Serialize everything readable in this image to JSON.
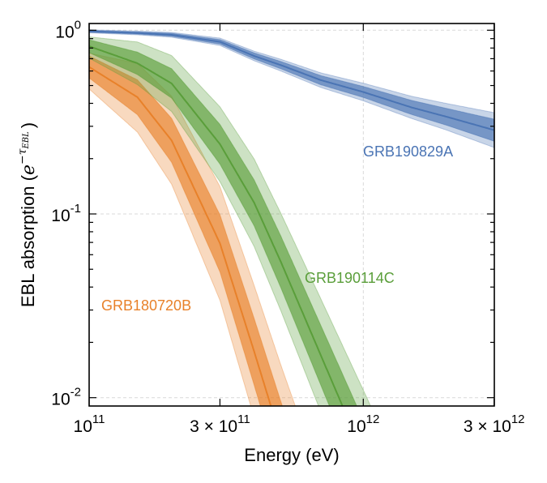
{
  "chart_data": {
    "type": "area",
    "title": "",
    "xlabel": "Energy (eV)",
    "ylabel": {
      "text": "EBL absorption (",
      "math_base": "e",
      "math_exp": "−τ",
      "math_sub": "EBL",
      "close": ")"
    },
    "xscale": "log",
    "yscale": "log",
    "xlim": [
      100000000000.0,
      3000000000000.0
    ],
    "ylim": [
      0.0092,
      1.06
    ],
    "grid": true,
    "x_ticks": [
      {
        "value": 100000000000.0,
        "prefix": "",
        "base": "10",
        "exp": "11"
      },
      {
        "value": 300000000000.0,
        "prefix": "3 × ",
        "base": "10",
        "exp": "11"
      },
      {
        "value": 1000000000000.0,
        "prefix": "",
        "base": "10",
        "exp": "12"
      },
      {
        "value": 3000000000000.0,
        "prefix": "3 × ",
        "base": "10",
        "exp": "12"
      }
    ],
    "y_ticks": [
      {
        "value": 1,
        "base": "10",
        "exp": "0"
      },
      {
        "value": 0.1,
        "base": "10",
        "exp": "-1"
      },
      {
        "value": 0.01,
        "base": "10",
        "exp": "-2"
      }
    ],
    "x": [
      100000000000.0,
      150000000000.0,
      200000000000.0,
      300000000000.0,
      400000000000.0,
      500000000000.0,
      700000000000.0,
      1000000000000.0,
      1500000000000.0,
      2000000000000.0,
      3000000000000.0
    ],
    "series": [
      {
        "name": "GRB180720B",
        "color": "#e8812a",
        "median": [
          0.631,
          0.432,
          0.251,
          0.0692,
          0.0178,
          0.00603,
          0.00126
        ],
        "inner_hi": [
          0.724,
          0.537,
          0.331,
          0.0989,
          0.0269,
          0.00955,
          0.00214
        ],
        "inner_lo": [
          0.55,
          0.347,
          0.191,
          0.0484,
          0.0117,
          0.0038,
          0.00074
        ],
        "outer_hi": [
          0.75,
          0.66,
          0.437,
          0.141,
          0.0407,
          0.0151,
          0.00363
        ],
        "outer_lo": [
          0.479,
          0.279,
          0.145,
          0.0339,
          0.00776,
          0.0024,
          0.000437
        ]
      },
      {
        "name": "GRB190114C",
        "color": "#5a9e3a",
        "median": [
          0.818,
          0.661,
          0.513,
          0.24,
          0.115,
          0.055,
          0.017,
          0.0049,
          0.00117
        ],
        "inner_hi": [
          0.887,
          0.76,
          0.617,
          0.307,
          0.153,
          0.0759,
          0.0247,
          0.0075,
          0.00191
        ],
        "inner_lo": [
          0.755,
          0.574,
          0.427,
          0.187,
          0.0861,
          0.0398,
          0.0117,
          0.0032,
          0.00072
        ],
        "outer_hi": [
          0.92,
          0.863,
          0.728,
          0.383,
          0.199,
          0.101,
          0.0345,
          0.011,
          0.00295
        ],
        "outer_lo": [
          0.705,
          0.506,
          0.361,
          0.15,
          0.0664,
          0.0298,
          0.00836,
          0.00219,
          0.00047
        ]
      },
      {
        "name": "GRB190829A",
        "color": "#4a74b4",
        "median": [
          0.986,
          0.966,
          0.944,
          0.865,
          0.724,
          0.646,
          0.535,
          0.461,
          0.38,
          0.339,
          0.286
        ],
        "inner_hi": [
          0.998,
          0.979,
          0.962,
          0.889,
          0.752,
          0.676,
          0.566,
          0.494,
          0.415,
          0.376,
          0.328
        ],
        "inner_lo": [
          0.975,
          0.953,
          0.927,
          0.841,
          0.698,
          0.617,
          0.505,
          0.431,
          0.348,
          0.305,
          0.249
        ],
        "outer_hi": [
          1.005,
          0.989,
          0.973,
          0.906,
          0.769,
          0.695,
          0.586,
          0.515,
          0.437,
          0.4,
          0.356
        ],
        "outer_lo": [
          0.968,
          0.944,
          0.916,
          0.826,
          0.682,
          0.6,
          0.488,
          0.413,
          0.331,
          0.287,
          0.23
        ]
      }
    ]
  }
}
